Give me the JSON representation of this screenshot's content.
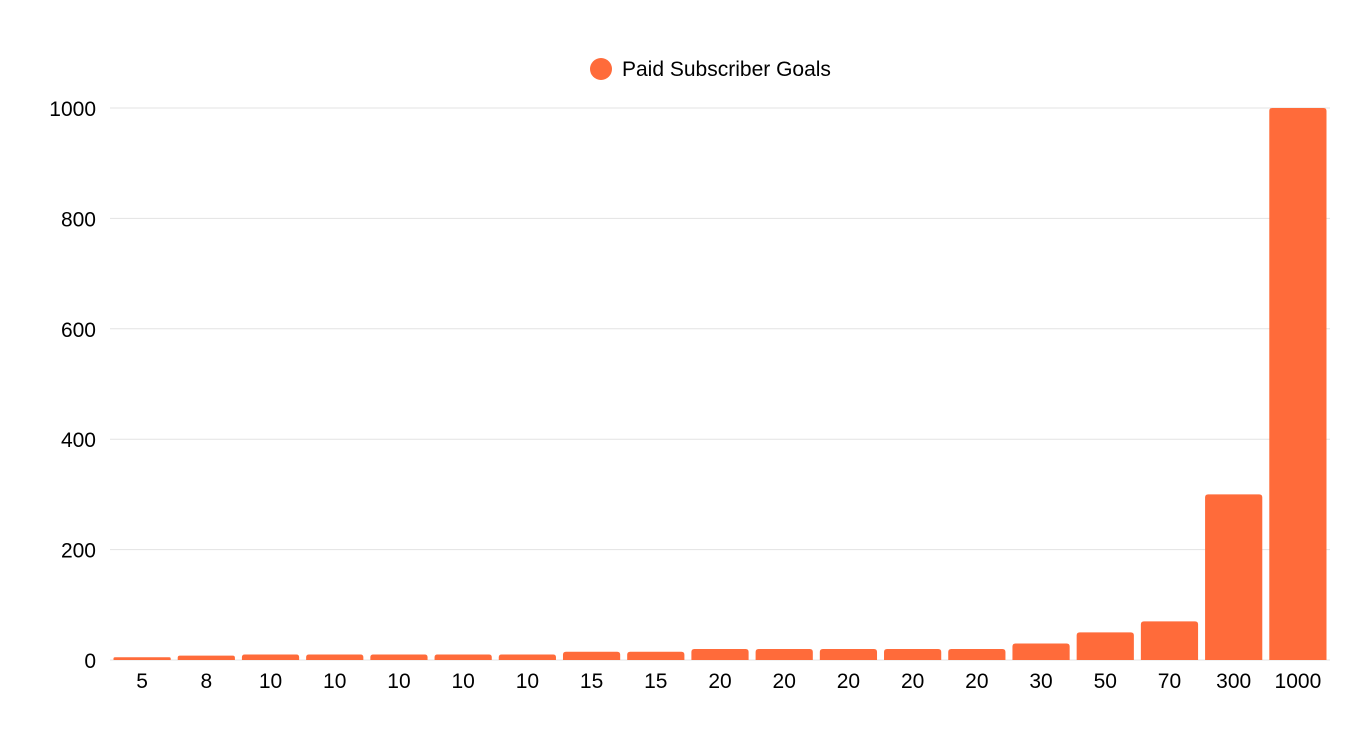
{
  "chart_data": {
    "type": "bar",
    "title": "",
    "xlabel": "",
    "ylabel": "",
    "legend": {
      "position": "top-center",
      "entries": [
        "Paid Subscriber Goals"
      ]
    },
    "categories": [
      "5",
      "8",
      "10",
      "10",
      "10",
      "10",
      "10",
      "15",
      "15",
      "20",
      "20",
      "20",
      "20",
      "20",
      "30",
      "50",
      "70",
      "300",
      "1000"
    ],
    "series": [
      {
        "name": "Paid Subscriber Goals",
        "color": "#ff6b3a",
        "values": [
          5,
          8,
          10,
          10,
          10,
          10,
          10,
          15,
          15,
          20,
          20,
          20,
          20,
          20,
          30,
          50,
          70,
          300,
          1000
        ]
      }
    ],
    "ylim": [
      0,
      1000
    ],
    "yticks": [
      0,
      200,
      400,
      600,
      800,
      1000
    ],
    "grid": true
  }
}
